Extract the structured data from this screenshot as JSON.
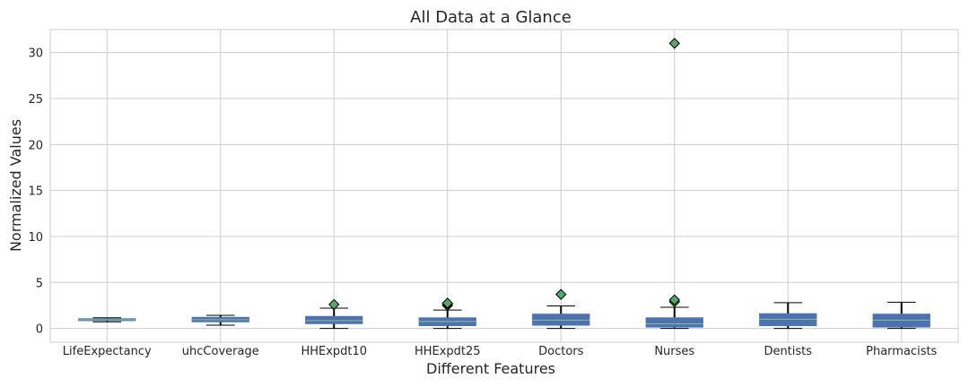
{
  "chart_data": {
    "type": "box",
    "title": "All Data at a Glance",
    "xlabel": "Different Features",
    "ylabel": "Normalized Values",
    "ylim": [
      -1.5,
      32.5
    ],
    "yticks": [
      0,
      5,
      10,
      15,
      20,
      25,
      30
    ],
    "grid": true,
    "colors": {
      "box": "#4c72b0",
      "median": "#8fbc8f",
      "flier": "#55a868",
      "grid": "#cccccc",
      "whisker": "#000000"
    },
    "categories": [
      "LifeExpectancy",
      "uhcCoverage",
      "HHExpdt10",
      "HHExpdt25",
      "Doctors",
      "Nurses",
      "Dentists",
      "Pharmacists"
    ],
    "boxes": [
      {
        "whislo": 0.72,
        "q1": 0.85,
        "med": 0.95,
        "q3": 1.05,
        "whishi": 1.15,
        "fliers": []
      },
      {
        "whislo": 0.35,
        "q1": 0.72,
        "med": 0.95,
        "q3": 1.2,
        "whishi": 1.42,
        "fliers": []
      },
      {
        "whislo": 0.0,
        "q1": 0.52,
        "med": 0.85,
        "q3": 1.3,
        "whishi": 2.2,
        "fliers": [
          2.6
        ]
      },
      {
        "whislo": 0.0,
        "q1": 0.3,
        "med": 0.75,
        "q3": 1.15,
        "whishi": 2.0,
        "fliers": [
          2.5,
          2.6,
          2.75
        ]
      },
      {
        "whislo": 0.0,
        "q1": 0.35,
        "med": 0.9,
        "q3": 1.55,
        "whishi": 2.45,
        "fliers": [
          3.7
        ]
      },
      {
        "whislo": 0.0,
        "q1": 0.15,
        "med": 0.5,
        "q3": 1.15,
        "whishi": 2.3,
        "fliers": [
          2.9,
          3.1,
          31.0
        ]
      },
      {
        "whislo": 0.0,
        "q1": 0.3,
        "med": 1.0,
        "q3": 1.6,
        "whishi": 2.8,
        "fliers": []
      },
      {
        "whislo": 0.0,
        "q1": 0.15,
        "med": 0.9,
        "q3": 1.55,
        "whishi": 2.85,
        "fliers": []
      }
    ]
  }
}
